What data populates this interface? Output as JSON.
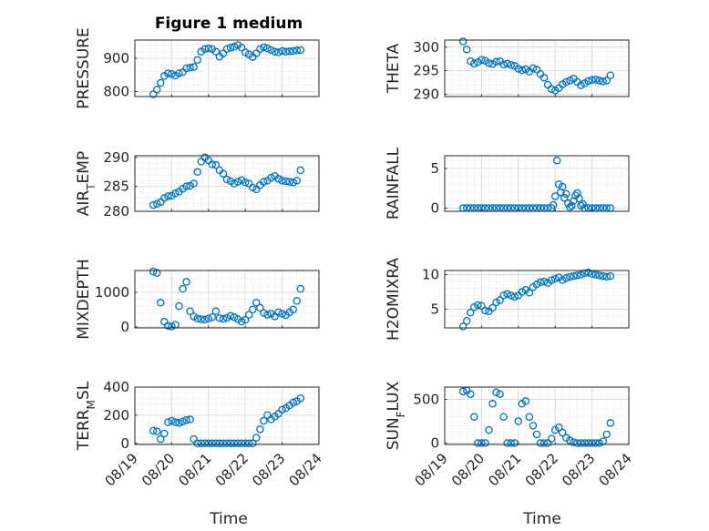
{
  "figure": {
    "title": "Figure 1 medium",
    "xlabel": "Time"
  },
  "chart_data": [
    {
      "type": "scatter",
      "ylabel": "PRESSURE",
      "ylim": [
        785,
        955
      ],
      "yticks": [
        800,
        900
      ],
      "ytick_labels": [
        "800",
        "900"
      ],
      "x": [
        0.5,
        0.6,
        0.7,
        0.8,
        0.9,
        1.0,
        1.1,
        1.2,
        1.3,
        1.4,
        1.5,
        1.6,
        1.7,
        1.8,
        1.9,
        2.0,
        2.1,
        2.2,
        2.3,
        2.4,
        2.5,
        2.6,
        2.7,
        2.8,
        2.9,
        3.0,
        3.1,
        3.2,
        3.3,
        3.4,
        3.5,
        3.6,
        3.7,
        3.8,
        3.9,
        4.0,
        4.1,
        4.2,
        4.3,
        4.4,
        4.5
      ],
      "y": [
        792,
        806,
        826,
        847,
        855,
        853,
        848,
        855,
        858,
        870,
        872,
        874,
        895,
        920,
        928,
        930,
        928,
        920,
        905,
        915,
        928,
        932,
        935,
        940,
        932,
        918,
        912,
        904,
        915,
        928,
        933,
        930,
        925,
        920,
        918,
        922,
        920,
        921,
        922,
        924,
        925
      ]
    },
    {
      "type": "scatter",
      "ylabel": "THETA",
      "ylim": [
        289.5,
        301.5
      ],
      "yticks": [
        290,
        295,
        300
      ],
      "ytick_labels": [
        "290",
        "295",
        "300"
      ],
      "x": [
        0.5,
        0.6,
        0.7,
        0.8,
        0.9,
        1.0,
        1.1,
        1.2,
        1.3,
        1.4,
        1.5,
        1.6,
        1.7,
        1.8,
        1.9,
        2.0,
        2.1,
        2.2,
        2.3,
        2.4,
        2.5,
        2.6,
        2.7,
        2.8,
        2.9,
        3.0,
        3.1,
        3.2,
        3.3,
        3.4,
        3.5,
        3.6,
        3.7,
        3.8,
        3.9,
        4.0,
        4.1,
        4.2,
        4.3,
        4.4,
        4.5
      ],
      "y": [
        301.2,
        299.5,
        297.0,
        296.5,
        296.8,
        297.3,
        297.1,
        296.6,
        296.4,
        296.9,
        297.0,
        296.3,
        296.5,
        296.2,
        296.0,
        295.4,
        295.1,
        295.3,
        294.8,
        295.5,
        295.2,
        294.3,
        293.5,
        292.0,
        291.1,
        290.8,
        291.3,
        292.1,
        292.6,
        292.9,
        293.3,
        292.6,
        291.9,
        292.3,
        292.8,
        293.0,
        293.1,
        292.9,
        292.7,
        292.9,
        294.0
      ]
    },
    {
      "type": "scatter",
      "ylabel": "AIR_TEMP",
      "ylim": [
        280.7,
        290.3
      ],
      "yticks": [
        280,
        285,
        290
      ],
      "ytick_labels": [
        "280",
        "285",
        "290"
      ],
      "x": [
        0.5,
        0.6,
        0.7,
        0.8,
        0.9,
        1.0,
        1.1,
        1.2,
        1.3,
        1.4,
        1.5,
        1.6,
        1.7,
        1.8,
        1.9,
        2.0,
        2.1,
        2.2,
        2.3,
        2.4,
        2.5,
        2.6,
        2.7,
        2.8,
        2.9,
        3.0,
        3.1,
        3.2,
        3.3,
        3.4,
        3.5,
        3.6,
        3.7,
        3.8,
        3.9,
        4.0,
        4.1,
        4.2,
        4.3,
        4.4,
        4.5
      ],
      "y": [
        281.8,
        282.0,
        282.3,
        283.0,
        283.3,
        283.4,
        283.8,
        284.1,
        284.6,
        285.0,
        285.1,
        285.5,
        287.5,
        289.3,
        290.0,
        289.5,
        288.8,
        288.7,
        287.8,
        287.2,
        286.2,
        285.9,
        285.5,
        285.8,
        286.1,
        285.7,
        285.5,
        284.8,
        284.5,
        285.2,
        285.8,
        286.0,
        286.5,
        286.8,
        286.3,
        286.0,
        285.9,
        285.8,
        285.7,
        286.0,
        287.8
      ]
    },
    {
      "type": "scatter",
      "ylabel": "RAINFALL",
      "ylim": [
        -0.4,
        6.6
      ],
      "yticks": [
        0,
        5
      ],
      "ytick_labels": [
        "0",
        "5"
      ],
      "x": [
        0.5,
        0.6,
        0.7,
        0.8,
        0.9,
        1.0,
        1.1,
        1.2,
        1.3,
        1.4,
        1.5,
        1.6,
        1.7,
        1.8,
        1.9,
        2.0,
        2.1,
        2.2,
        2.3,
        2.4,
        2.5,
        2.6,
        2.7,
        2.8,
        2.9,
        2.95,
        3.0,
        3.05,
        3.1,
        3.15,
        3.2,
        3.25,
        3.3,
        3.35,
        3.4,
        3.45,
        3.5,
        3.55,
        3.6,
        3.65,
        3.7,
        3.75,
        3.8,
        3.9,
        4.0,
        4.1,
        4.2,
        4.3,
        4.4,
        4.5
      ],
      "y": [
        0,
        0,
        0,
        0,
        0,
        0,
        0,
        0,
        0,
        0,
        0,
        0,
        0,
        0,
        0,
        0,
        0,
        0,
        0,
        0,
        0,
        0,
        0,
        0,
        0,
        0.4,
        1.5,
        6.0,
        3.0,
        2.0,
        2.7,
        1.3,
        1.8,
        0.6,
        0.1,
        0.3,
        0.9,
        1.6,
        1.9,
        1.2,
        0.3,
        0.5,
        0,
        0,
        0,
        0,
        0,
        0,
        0,
        0
      ]
    },
    {
      "type": "scatter",
      "ylabel": "MIXDEPTH",
      "ylim": [
        -30,
        1630
      ],
      "yticks": [
        0,
        1000
      ],
      "ytick_labels": [
        "0",
        "1000"
      ],
      "x": [
        0.5,
        0.6,
        0.7,
        0.8,
        0.9,
        1.0,
        1.1,
        1.2,
        1.3,
        1.4,
        1.5,
        1.6,
        1.7,
        1.8,
        1.9,
        2.0,
        2.1,
        2.2,
        2.3,
        2.4,
        2.5,
        2.6,
        2.7,
        2.8,
        2.9,
        3.0,
        3.1,
        3.2,
        3.3,
        3.4,
        3.5,
        3.6,
        3.7,
        3.8,
        3.9,
        4.0,
        4.1,
        4.2,
        4.3,
        4.4,
        4.5
      ],
      "y": [
        1600,
        1560,
        700,
        150,
        30,
        10,
        60,
        600,
        1100,
        1300,
        450,
        300,
        240,
        220,
        210,
        240,
        280,
        450,
        250,
        230,
        260,
        320,
        280,
        220,
        150,
        200,
        350,
        500,
        700,
        550,
        400,
        350,
        380,
        300,
        420,
        380,
        340,
        420,
        500,
        750,
        1100
      ]
    },
    {
      "type": "scatter",
      "ylabel": "H2OMIXRA",
      "ylim": [
        2.3,
        10.6
      ],
      "yticks": [
        5,
        10
      ],
      "ytick_labels": [
        "5",
        "10"
      ],
      "x": [
        0.5,
        0.6,
        0.7,
        0.8,
        0.9,
        1.0,
        1.1,
        1.2,
        1.3,
        1.4,
        1.5,
        1.6,
        1.7,
        1.8,
        1.9,
        2.0,
        2.1,
        2.2,
        2.3,
        2.4,
        2.5,
        2.6,
        2.7,
        2.8,
        2.9,
        3.0,
        3.1,
        3.2,
        3.3,
        3.4,
        3.5,
        3.6,
        3.7,
        3.8,
        3.9,
        4.0,
        4.1,
        4.2,
        4.3,
        4.4,
        4.5
      ],
      "y": [
        2.5,
        3.3,
        4.5,
        5.3,
        5.6,
        5.5,
        4.8,
        4.7,
        5.2,
        6.0,
        6.3,
        7.0,
        7.2,
        7.0,
        6.8,
        7.0,
        7.5,
        7.8,
        7.4,
        8.2,
        8.6,
        8.9,
        9.0,
        8.8,
        9.2,
        9.4,
        9.6,
        9.2,
        9.5,
        9.7,
        9.8,
        9.9,
        10.0,
        10.2,
        10.3,
        10.1,
        10.0,
        9.9,
        9.8,
        9.7,
        9.8
      ]
    },
    {
      "type": "scatter",
      "ylabel": "TERR_MSL",
      "ylim": [
        -8,
        400
      ],
      "yticks": [
        0,
        200,
        400
      ],
      "ytick_labels": [
        "0",
        "200",
        "400"
      ],
      "x": [
        0.5,
        0.6,
        0.7,
        0.8,
        0.9,
        1.0,
        1.1,
        1.2,
        1.3,
        1.4,
        1.5,
        1.6,
        1.7,
        1.8,
        1.9,
        2.0,
        2.1,
        2.2,
        2.3,
        2.4,
        2.5,
        2.6,
        2.7,
        2.8,
        2.9,
        3.0,
        3.1,
        3.2,
        3.3,
        3.4,
        3.5,
        3.6,
        3.7,
        3.8,
        3.9,
        4.0,
        4.1,
        4.2,
        4.3,
        4.4,
        4.5
      ],
      "y": [
        90,
        85,
        30,
        70,
        150,
        160,
        150,
        145,
        155,
        165,
        170,
        30,
        0,
        0,
        0,
        0,
        0,
        0,
        0,
        0,
        0,
        0,
        0,
        0,
        0,
        0,
        0,
        0,
        40,
        100,
        160,
        200,
        170,
        190,
        210,
        240,
        250,
        270,
        290,
        300,
        320
      ]
    },
    {
      "type": "scatter",
      "ylabel": "SUN_FLUX",
      "ylim": [
        -15,
        640
      ],
      "yticks": [
        0,
        500
      ],
      "ytick_labels": [
        "0",
        "500"
      ],
      "x": [
        0.5,
        0.6,
        0.7,
        0.8,
        0.9,
        1.0,
        1.1,
        1.2,
        1.3,
        1.4,
        1.5,
        1.6,
        1.7,
        1.8,
        1.9,
        2.0,
        2.1,
        2.2,
        2.3,
        2.4,
        2.5,
        2.6,
        2.7,
        2.8,
        2.9,
        3.0,
        3.1,
        3.2,
        3.3,
        3.4,
        3.5,
        3.6,
        3.7,
        3.8,
        3.9,
        4.0,
        4.1,
        4.2,
        4.3,
        4.4,
        4.5
      ],
      "y": [
        590,
        600,
        560,
        300,
        0,
        0,
        0,
        150,
        450,
        580,
        560,
        300,
        0,
        0,
        0,
        250,
        450,
        480,
        300,
        200,
        100,
        0,
        0,
        0,
        50,
        150,
        180,
        120,
        60,
        30,
        10,
        0,
        0,
        0,
        0,
        0,
        0,
        0,
        20,
        100,
        230
      ]
    }
  ],
  "xaxis": {
    "xlim": [
      0,
      5
    ],
    "ticks": [
      0,
      1,
      2,
      3,
      4,
      5
    ],
    "tick_labels": [
      "08/19",
      "08/20",
      "08/21",
      "08/22",
      "08/23",
      "08/24"
    ]
  },
  "style": {
    "marker_color": "#0072BD",
    "axes_color": "#262626",
    "grid_color": "#d9d9d9"
  }
}
